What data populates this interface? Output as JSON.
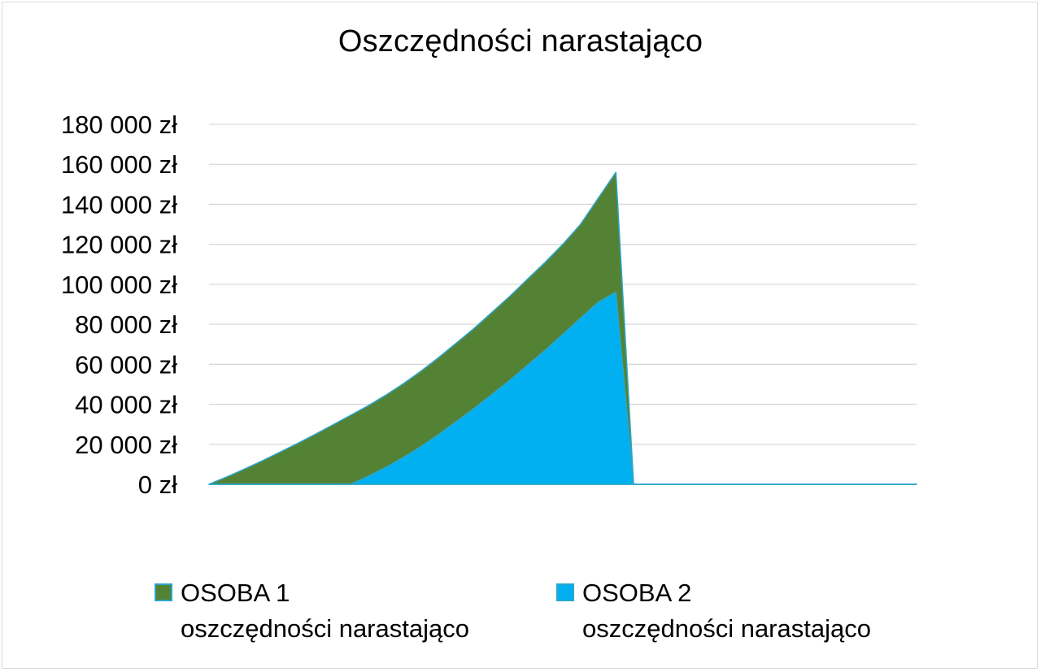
{
  "chart_data": {
    "type": "area",
    "title": "Oszczędności narastająco",
    "xlabel": "",
    "ylabel": "",
    "ylim": [
      0,
      180000
    ],
    "yticks": [
      "0 zł",
      "20 000 zł",
      "40 000 zł",
      "60 000 zł",
      "80 000 zł",
      "100 000 zł",
      "120 000 zł",
      "140 000 zł",
      "160 000 zł",
      "180 000 zł"
    ],
    "grid": true,
    "stacked": true,
    "legend_position": "bottom",
    "x": [
      0,
      1,
      2,
      3,
      4,
      5,
      6,
      7,
      8,
      9,
      10,
      11,
      12,
      13,
      14,
      15,
      16,
      17,
      18,
      19,
      20,
      21,
      22,
      23,
      24,
      25,
      26,
      27,
      28,
      29,
      30,
      31,
      32,
      33,
      34,
      35,
      36,
      37,
      38,
      39,
      40
    ],
    "series": [
      {
        "name": "OSOBA 2 oszczędności narastająco",
        "color": "#00b0f0",
        "values": [
          0,
          0,
          0,
          0,
          0,
          0,
          0,
          0,
          0,
          4000,
          8500,
          13500,
          19000,
          25000,
          31500,
          38000,
          45000,
          52000,
          59500,
          67000,
          75000,
          83000,
          91000,
          96000,
          0,
          0,
          0,
          0,
          0,
          0,
          0,
          0,
          0,
          0,
          0,
          0,
          0,
          0,
          0,
          0,
          0
        ]
      },
      {
        "name": "OSOBA 1 oszczędności narastająco",
        "color": "#548235",
        "values": [
          0,
          3700,
          7600,
          11700,
          16000,
          20400,
          25000,
          29700,
          34500,
          35300,
          36100,
          36900,
          37700,
          38500,
          39300,
          40100,
          41000,
          42000,
          43000,
          44000,
          45000,
          47000,
          52000,
          60000,
          0,
          0,
          0,
          0,
          0,
          0,
          0,
          0,
          0,
          0,
          0,
          0,
          0,
          0,
          0,
          0,
          0
        ]
      }
    ],
    "legend": [
      {
        "line1": "OSOBA 1",
        "line2": "oszczędności narastająco",
        "color": "#548235"
      },
      {
        "line1": "OSOBA 2",
        "line2": "oszczędności narastająco",
        "color": "#00b0f0"
      }
    ]
  }
}
